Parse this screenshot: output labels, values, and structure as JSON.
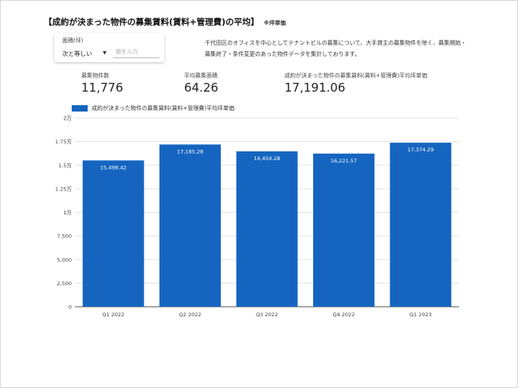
{
  "title": "【成約が決まった物件の募集賃料(賃料+管理費)の平均】",
  "title_note": "※坪単価",
  "filter": {
    "label": "面積(坪)",
    "operator": "次と等しい",
    "input_placeholder": "値を入力"
  },
  "description": "千代田区のオフィスを中心としてテナントビルの募集について、大手貸主の募集物件を除く、募集開始・募集終了・条件変更のあった物件データを集計しております。",
  "kpis": [
    {
      "label": "募集物件数",
      "value": "11,776"
    },
    {
      "label": "平均募集面積",
      "value": "64.26"
    },
    {
      "label": "成約が決まった物件の募集賃料(賃料+管理費)平均坪単価",
      "value": "17,191.06"
    }
  ],
  "chart_data": {
    "type": "bar",
    "categories": [
      "Q1 2022",
      "Q2 2022",
      "Q3 2022",
      "Q4 2022",
      "Q1 2023"
    ],
    "series": [
      {
        "name": "成約が決まった物件の募集賃料(賃料+管理費)平均坪単価",
        "values": [
          15498.42,
          17185.28,
          16459.28,
          16221.57,
          17374.29
        ]
      }
    ],
    "data_labels": [
      "15,498.42",
      "17,185.28",
      "16,459.28",
      "16,221.57",
      "17,374.29"
    ],
    "ylim": [
      0,
      20000
    ],
    "y_ticks": [
      0,
      2500,
      5000,
      7500,
      10000,
      12500,
      15000,
      17500,
      20000
    ],
    "y_tick_labels": [
      "0",
      "2,500",
      "5,000",
      "7,500",
      "1万",
      "1.25万",
      "1.5万",
      "1.75万",
      "2万"
    ],
    "grid": true,
    "legend_position": "top-left",
    "bar_color": "#1565c0"
  }
}
